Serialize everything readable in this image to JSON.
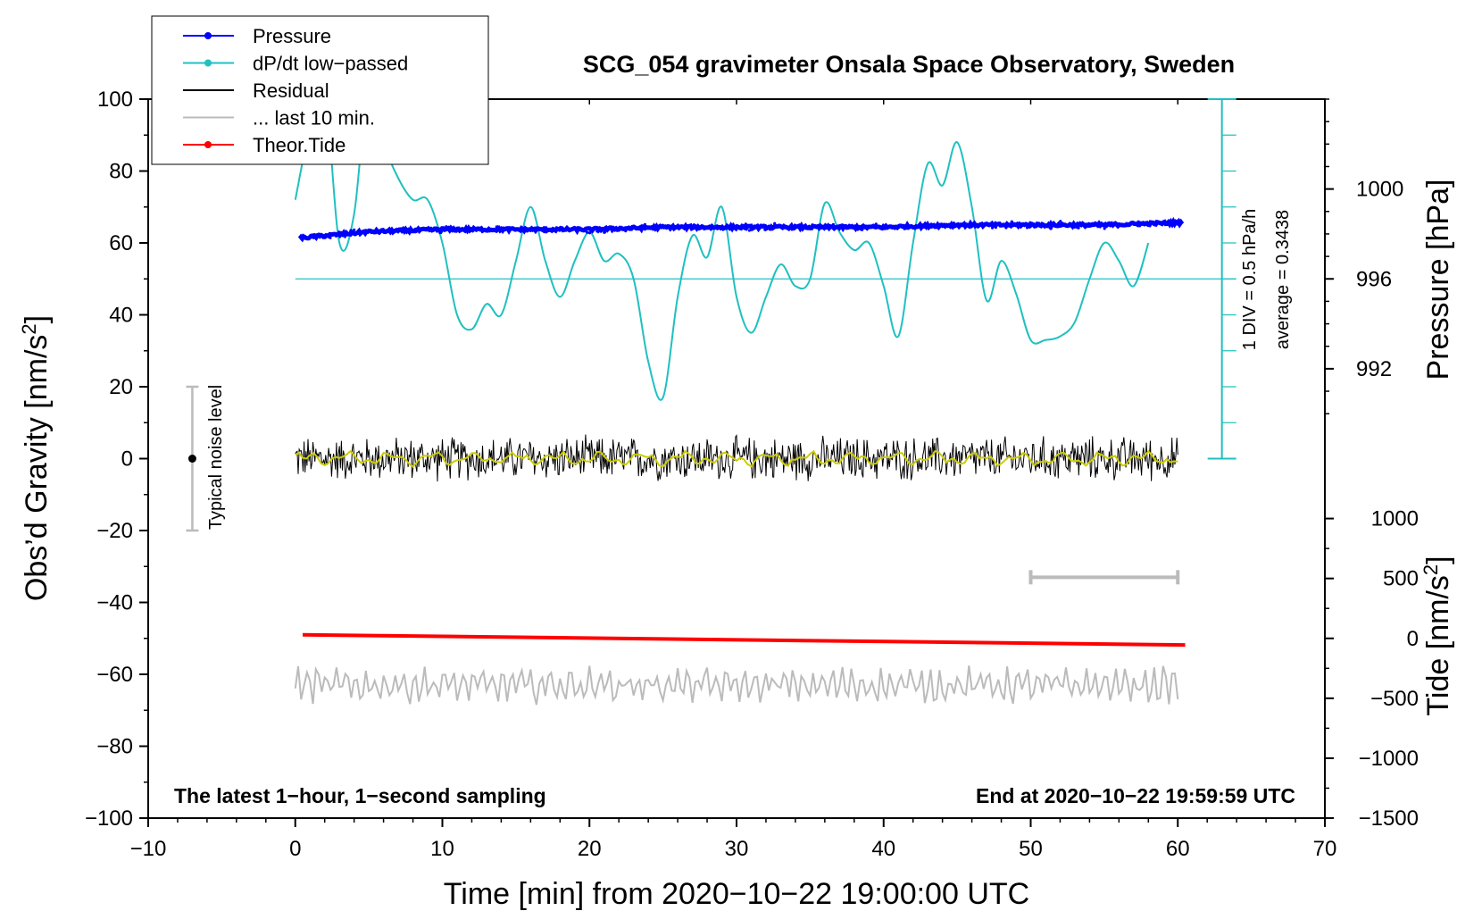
{
  "chart_data": {
    "type": "line",
    "title": "SCG_054 gravimeter Onsala Space Observatory, Sweden",
    "xlabel": "Time [min] from 2020−10−22 19:00:00 UTC",
    "ylabel_main": "Obs’d Gravity [nm/s",
    "ylabel_main_sup": "2",
    "ylabel_main_end": "]",
    "ylabel_pressure": "Pressure [hPa]",
    "ylabel_tide": "Tide [nm/s",
    "ylabel_tide_sup": "2",
    "ylabel_tide_end": "]",
    "xlim": [
      -10,
      70
    ],
    "ylim": [
      -100,
      100
    ],
    "x_ticks": [
      -10,
      0,
      10,
      20,
      30,
      40,
      50,
      60,
      70
    ],
    "x_tick_labels": [
      "−10",
      "0",
      "10",
      "20",
      "30",
      "40",
      "50",
      "60",
      "70"
    ],
    "y_ticks": [
      100,
      80,
      60,
      40,
      20,
      0,
      -20,
      -40,
      -60,
      -80,
      -100
    ],
    "y_tick_labels": [
      "100",
      "80",
      "60",
      "40",
      "20",
      "0",
      "−20",
      "−40",
      "−60",
      "−80",
      "−100"
    ],
    "pressure_axis": {
      "ticks": [
        1000,
        996,
        992
      ],
      "tick_labels": [
        "1000",
        "996",
        "992"
      ],
      "reference": [
        {
          "hpa": 996,
          "gravity": 50
        },
        {
          "hpa": 1000,
          "gravity": 75
        }
      ]
    },
    "tide_axis": {
      "ticks": [
        1000,
        500,
        0,
        -500,
        -1000,
        -1500
      ],
      "tick_labels": [
        "1000",
        "500",
        "0",
        "−500",
        "−1000",
        "−1500"
      ],
      "reference": [
        {
          "tide": 0,
          "gravity": -50
        },
        {
          "tide": -1500,
          "gravity": -100
        }
      ]
    },
    "dpdt_scale": {
      "label_div": "1 DIV = 0.5 hPa/h",
      "label_avg": "average = 0.3438",
      "x": 63,
      "y_from": 0,
      "y_to": 100,
      "ticks": [
        0,
        10,
        20,
        30,
        40,
        50,
        60,
        70,
        80,
        90,
        100
      ],
      "baseline": 50
    },
    "noise_bar": {
      "label": "Typical noise level",
      "x": -7,
      "y_center": 0,
      "y_low": -20,
      "y_high": 20
    },
    "gray_scale_bar": {
      "x_from": 50,
      "x_to": 60,
      "y": -33
    },
    "note_left": "The latest 1−hour, 1−second sampling",
    "note_right": "End at 2020−10−22 19:59:59 UTC",
    "legend": [
      {
        "label": "Pressure",
        "color": "#0000ff",
        "marker": true
      },
      {
        "label": "dP/dt low−passed",
        "color": "#20c0c0",
        "marker": true
      },
      {
        "label": "Residual",
        "color": "#000000",
        "marker": false
      },
      {
        "label": "... last 10 min.",
        "color": "#bbbbbb",
        "marker": false
      },
      {
        "label": "Theor.Tide",
        "color": "#ff0000",
        "marker": true
      }
    ],
    "series": [
      {
        "name": "dP/dt low−passed",
        "color": "#20c0c0",
        "x": [
          0,
          1,
          2,
          3,
          4,
          5,
          6,
          7,
          8,
          9,
          10,
          11,
          12,
          13,
          14,
          15,
          16,
          17,
          18,
          19,
          20,
          21,
          22,
          23,
          24,
          25,
          26,
          27,
          28,
          29,
          30,
          31,
          32,
          33,
          34,
          35,
          36,
          37,
          38,
          39,
          40,
          41,
          42,
          43,
          44,
          45,
          46,
          47,
          48,
          49,
          50,
          51,
          52,
          53,
          54,
          55,
          56,
          57,
          58
        ],
        "values": [
          72,
          92,
          102,
          60,
          68,
          105,
          88,
          78,
          72,
          72,
          60,
          40,
          36,
          43,
          40,
          55,
          70,
          55,
          45,
          55,
          63,
          55,
          57,
          50,
          27,
          17,
          45,
          62,
          56,
          70,
          45,
          35,
          45,
          54,
          48,
          50,
          71,
          63,
          58,
          60,
          48,
          34,
          60,
          82,
          76,
          88,
          70,
          44,
          55,
          46,
          33,
          33,
          34,
          38,
          50,
          60,
          55,
          48,
          60
        ]
      },
      {
        "name": "Pressure",
        "color": "#0000ff",
        "x": [
          0,
          5,
          10,
          15,
          20,
          25,
          30,
          35,
          40,
          45,
          50,
          55,
          60
        ],
        "hpa": [
          997.8,
          998.1,
          998.2,
          998.2,
          998.2,
          998.3,
          998.3,
          998.3,
          998.3,
          998.4,
          998.4,
          998.4,
          998.5
        ]
      },
      {
        "name": "Residual",
        "color": "#000000",
        "x_range": [
          0,
          60
        ],
        "amplitude_nm_s2": 5,
        "smoothed_color": "#cccc00"
      },
      {
        "name": "... last 10 min.",
        "color": "#bbbbbb",
        "x_range": [
          0,
          60
        ],
        "offset_gravity": -63,
        "amplitude_nm_s2": 4
      },
      {
        "name": "Theor.Tide",
        "color": "#ff0000",
        "x": [
          0.5,
          60.5
        ],
        "tide": [
          30,
          -55
        ]
      }
    ]
  }
}
